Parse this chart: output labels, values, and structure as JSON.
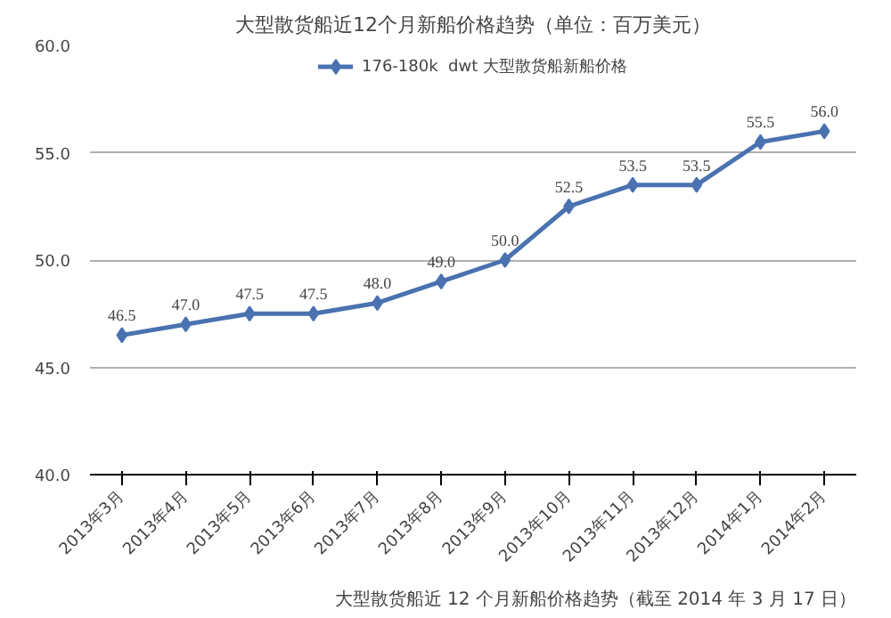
{
  "chart_data": {
    "type": "line",
    "title": "大型散货船近12个月新船价格趋势（单位：百万美元）",
    "categories": [
      "2013年3月",
      "2013年4月",
      "2013年5月",
      "2013年6月",
      "2013年7月",
      "2013年8月",
      "2013年9月",
      "2013年10月",
      "2013年11月",
      "2013年12月",
      "2014年1月",
      "2014年2月"
    ],
    "series": [
      {
        "name": "176-180k  dwt 大型散货船新船价格",
        "color": "#4a72b0",
        "values": [
          46.5,
          47.0,
          47.5,
          47.5,
          48.0,
          49.0,
          50.0,
          52.5,
          53.5,
          53.5,
          55.5,
          56.0
        ]
      }
    ],
    "value_labels": [
      "46.5",
      "47.0",
      "47.5",
      "47.5",
      "48.0",
      "49.0",
      "50.0",
      "52.5",
      "53.5",
      "53.5",
      "55.5",
      "56.0"
    ],
    "ylim": [
      40,
      60
    ],
    "yticks": [
      {
        "value": 40,
        "label": "40.0"
      },
      {
        "value": 45,
        "label": "45.0"
      },
      {
        "value": 50,
        "label": "50.0"
      },
      {
        "value": 55,
        "label": "55.0"
      },
      {
        "value": 60,
        "label": "60.0"
      }
    ],
    "grid": "y",
    "legend": "top",
    "marker": "diamond",
    "line_style": "solid",
    "annotations": [
      "大型散货船近 12 个月新船价格趋势（截至 2014 年 3 月 17 日）"
    ]
  }
}
